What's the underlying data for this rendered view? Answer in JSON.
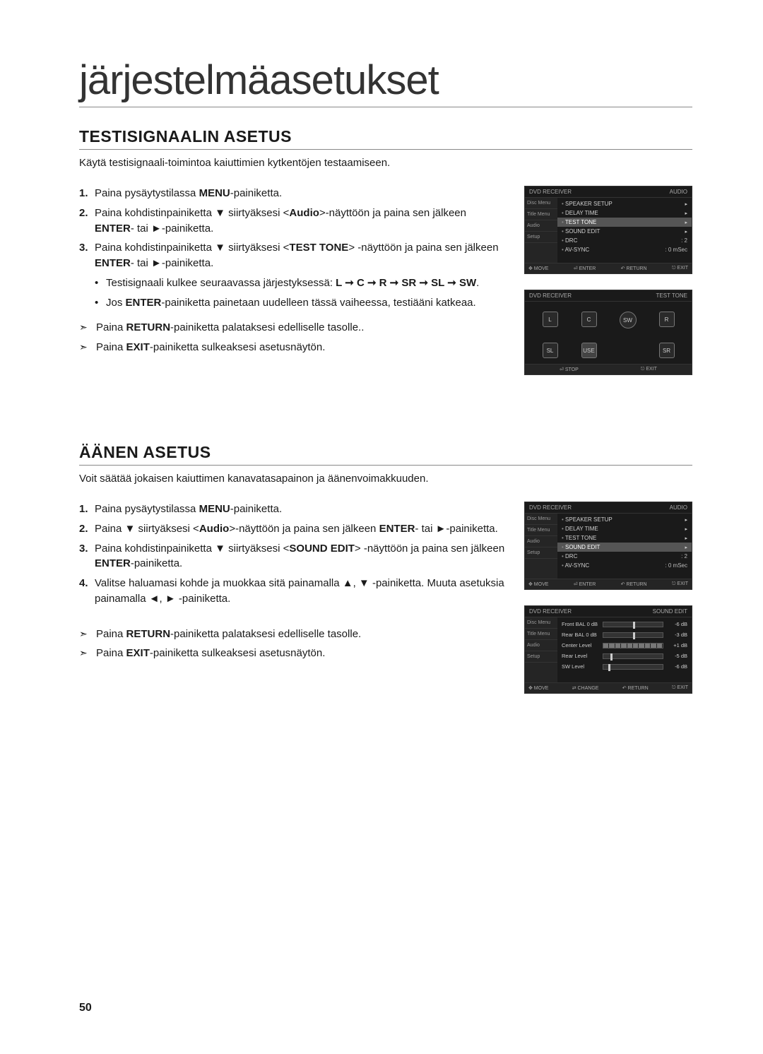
{
  "page": {
    "title": "järjestelmäasetukset",
    "number": "50"
  },
  "section1": {
    "heading": "TESTISIGNAALIN ASETUS",
    "intro": "Käytä testisignaali-toimintoa kaiuttimien kytkentöjen testaamiseen.",
    "steps": {
      "s1_a": "Paina pysäytystilassa ",
      "s1_b": "MENU",
      "s1_c": "-painiketta.",
      "s2_a": "Paina kohdistinpainiketta ▼ siirtyäksesi <",
      "s2_b": "Audio",
      "s2_c": ">-näyttöön ja paina sen jälkeen ",
      "s2_d": "ENTER",
      "s2_e": "- tai ►-painiketta.",
      "s3_a": "Paina kohdistinpainiketta ▼ siirtyäksesi <",
      "s3_b": "TEST TONE",
      "s3_c": "> -näyttöön ja paina sen jälkeen ",
      "s3_d": "ENTER",
      "s3_e": "- tai ►-painiketta.",
      "sub1_a": "Testisignaali kulkee seuraavassa järjestyksessä: ",
      "sub1_b": "L ➞ C ➞ R ➞ SR ➞ SL ➞ SW",
      "sub1_c": ".",
      "sub2_a": "Jos ",
      "sub2_b": "ENTER",
      "sub2_c": "-painiketta painetaan uudelleen tässä vaiheessa, testiääni katkeaa."
    },
    "actions": {
      "a1_a": "Paina ",
      "a1_b": "RETURN",
      "a1_c": "-painiketta palataksesi edelliselle tasolle..",
      "a2_a": "Paina ",
      "a2_b": "EXIT",
      "a2_c": "-painiketta sulkeaksesi asetusnäytön."
    }
  },
  "section2": {
    "heading": "ÄÄNEN ASETUS",
    "intro": "Voit säätää jokaisen kaiuttimen kanavatasapainon ja äänenvoimakkuuden.",
    "steps": {
      "s1_a": "Paina pysäytystilassa ",
      "s1_b": "MENU",
      "s1_c": "-painiketta.",
      "s2_a": "Paina ▼ siirtyäksesi <",
      "s2_b": "Audio",
      "s2_c": ">-näyttöön ja paina sen jälkeen ",
      "s2_d": "ENTER",
      "s2_e": "- tai ►-painiketta.",
      "s3_a": "Paina kohdistinpainiketta ▼ siirtyäksesi <",
      "s3_b": "SOUND EDIT",
      "s3_c": "> -näyttöön ja paina sen jälkeen ",
      "s3_d": "ENTER",
      "s3_e": "-painiketta.",
      "s4": "Valitse haluamasi kohde ja muokkaa sitä painamalla ▲, ▼ -painiketta. Muuta asetuksia painamalla ◄, ► -painiketta."
    },
    "actions": {
      "a1_a": "Paina ",
      "a1_b": "RETURN",
      "a1_c": "-painiketta palataksesi edelliselle tasolle.",
      "a2_a": "Paina ",
      "a2_b": "EXIT",
      "a2_c": "-painiketta sulkeaksesi asetusnäytön."
    }
  },
  "osd_audio1": {
    "brand": "DVD RECEIVER",
    "title": "AUDIO",
    "side": [
      "Disc Menu",
      "Title Menu",
      "Audio",
      "Setup"
    ],
    "rows": [
      {
        "label": "SPEAKER SETUP",
        "val": "",
        "sel": false
      },
      {
        "label": "DELAY TIME",
        "val": "",
        "sel": false
      },
      {
        "label": "TEST TONE",
        "val": "",
        "sel": true
      },
      {
        "label": "SOUND EDIT",
        "val": "",
        "sel": false
      },
      {
        "label": "DRC",
        "val": ": 2",
        "sel": false
      },
      {
        "label": "AV-SYNC",
        "val": ": 0 mSec",
        "sel": false
      }
    ],
    "footer": [
      "✥ MOVE",
      "⏎ ENTER",
      "↶ RETURN",
      "⎋ EXIT"
    ]
  },
  "osd_testtone": {
    "brand": "DVD RECEIVER",
    "title": "TEST TONE",
    "speakers_row1": [
      "L",
      "C",
      "SW",
      "R"
    ],
    "speakers_row2": [
      "SL",
      "USE",
      "",
      "SR"
    ],
    "footer": [
      "⏎ STOP",
      "⎋ EXIT"
    ]
  },
  "osd_audio2": {
    "brand": "DVD RECEIVER",
    "title": "AUDIO",
    "side": [
      "Disc Menu",
      "Title Menu",
      "Audio",
      "Setup"
    ],
    "rows": [
      {
        "label": "SPEAKER SETUP",
        "val": "",
        "sel": false
      },
      {
        "label": "DELAY TIME",
        "val": "",
        "sel": false
      },
      {
        "label": "TEST TONE",
        "val": "",
        "sel": false
      },
      {
        "label": "SOUND EDIT",
        "val": "",
        "sel": true
      },
      {
        "label": "DRC",
        "val": ": 2",
        "sel": false
      },
      {
        "label": "AV-SYNC",
        "val": ": 0 mSec",
        "sel": false
      }
    ],
    "footer": [
      "✥ MOVE",
      "⏎ ENTER",
      "↶ RETURN",
      "⎋ EXIT"
    ]
  },
  "osd_soundedit": {
    "brand": "DVD RECEIVER",
    "title": "SOUND EDIT",
    "side": [
      "Disc Menu",
      "Title Menu",
      "Audio",
      "Setup"
    ],
    "rows": [
      {
        "label": "Front BAL 0 dB",
        "val": "-6 dB",
        "pos": 50,
        "seg": false
      },
      {
        "label": "Rear BAL 0 dB",
        "val": "-3 dB",
        "pos": 50,
        "seg": false
      },
      {
        "label": "Center Level",
        "val": "+1 dB",
        "pos": 0,
        "seg": true
      },
      {
        "label": "Rear Level",
        "val": "-5 dB",
        "pos": 12,
        "seg": false
      },
      {
        "label": "SW Level",
        "val": "-6 dB",
        "pos": 8,
        "seg": false
      }
    ],
    "footer": [
      "✥ MOVE",
      "⇄ CHANGE",
      "↶ RETURN",
      "⎋ EXIT"
    ]
  }
}
